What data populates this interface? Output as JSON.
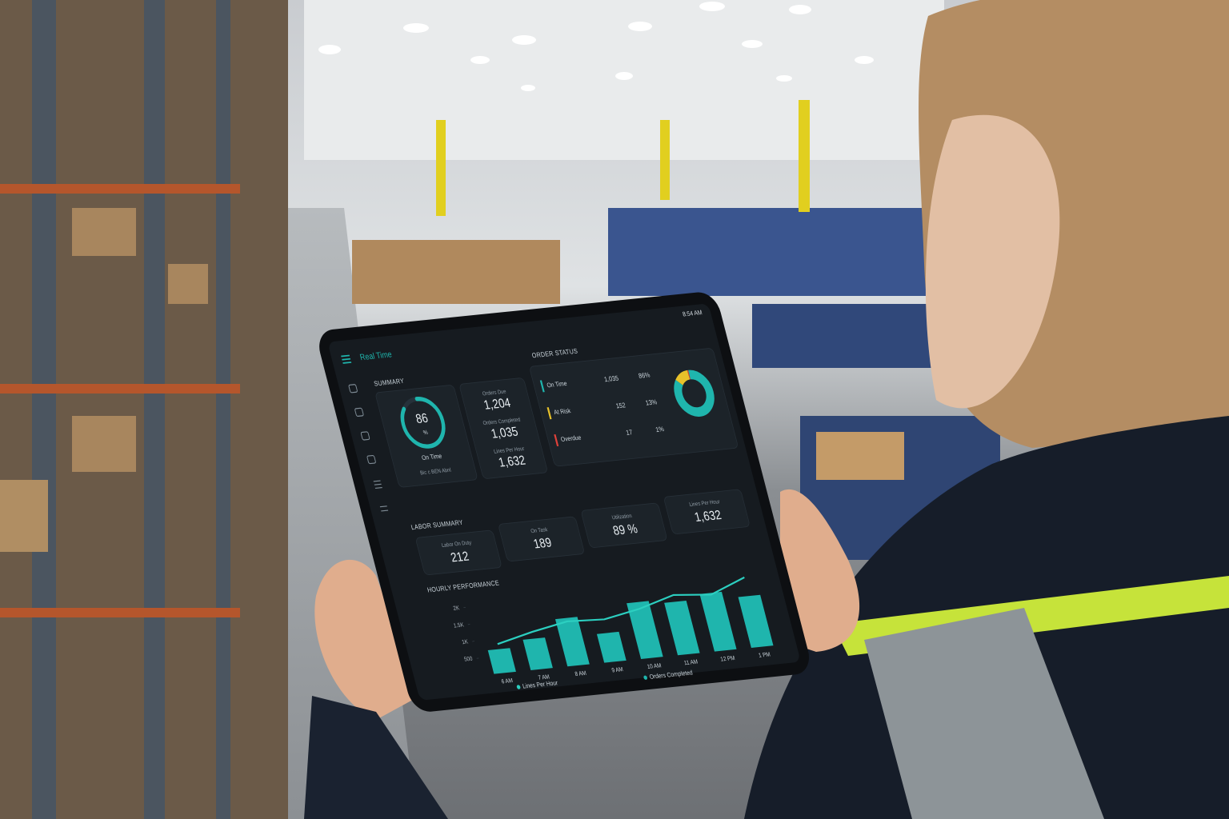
{
  "header": {
    "title": "Real Time",
    "time": "8:54 AM"
  },
  "summary": {
    "title": "SUMMARY",
    "on_time": {
      "value": 86,
      "unit": "%",
      "label": "On Time",
      "footnote": "Bic c BEN Abnl"
    },
    "metrics": [
      {
        "label": "Orders Due",
        "value": "1,204"
      },
      {
        "label": "Orders Completed",
        "value": "1,035"
      },
      {
        "label": "Lines Per Hour",
        "value": "1,632"
      }
    ]
  },
  "order_status": {
    "title": "ORDER STATUS",
    "labels": [
      "On Time",
      "At Risk",
      "Overdue"
    ],
    "counts": [
      "1,035",
      "152",
      "17"
    ],
    "values": [
      86,
      13,
      1
    ],
    "value_labels": [
      "86%",
      "13%",
      "1%"
    ],
    "colors": [
      "#1fb5ad",
      "#e8c22a",
      "#e0413a"
    ]
  },
  "labor": {
    "title": "LABOR SUMMARY",
    "metrics": [
      {
        "label": "Labor On Duty",
        "value": "212"
      },
      {
        "label": "On Task",
        "value": "189"
      },
      {
        "label": "Utilization",
        "value": "89 %"
      },
      {
        "label": "Lines Per Hour",
        "value": "1,632"
      }
    ]
  },
  "chart_data": {
    "type": "bar",
    "title": "HOURLY PERFORMANCE",
    "categories": [
      "6 AM",
      "7 AM",
      "8 AM",
      "9 AM",
      "10 AM",
      "11 AM",
      "12 PM",
      "1 PM"
    ],
    "series": [
      {
        "name": "Orders Completed",
        "type": "bar",
        "color": "#1fb5ad",
        "values": [
          700,
          900,
          1400,
          850,
          1650,
          1550,
          1700,
          1500
        ]
      },
      {
        "name": "Lines Per Hour",
        "type": "line",
        "color": "#2ccfc0",
        "values": [
          850,
          1100,
          1300,
          1250,
          1450,
          1750,
          1650,
          2050
        ]
      }
    ],
    "ylim": [
      0,
      2200
    ],
    "yticks": [
      500,
      {
        "value": 1000,
        "label": "1K"
      },
      {
        "value": 1500,
        "label": "1.5K"
      },
      {
        "value": 2000,
        "label": "2K"
      }
    ]
  }
}
